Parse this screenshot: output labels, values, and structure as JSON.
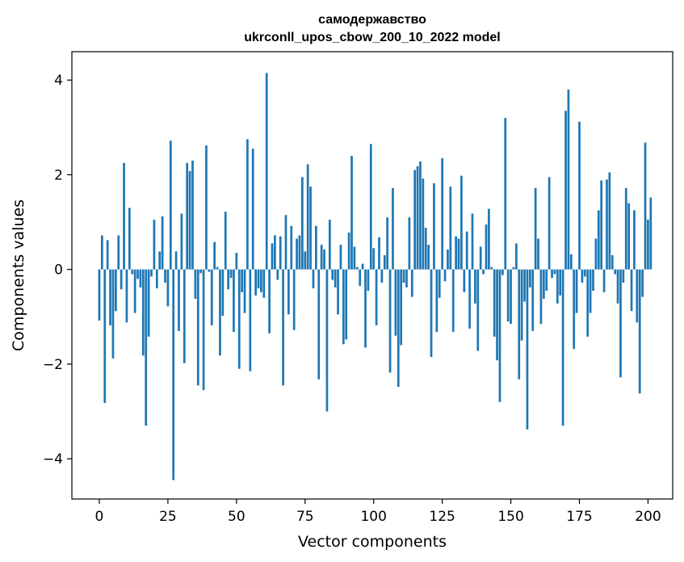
{
  "chart_data": {
    "type": "bar",
    "title": "самодержавство",
    "subtitle": "ukrconll_upos_cbow_200_10_2022 model",
    "xlabel": "Vector components",
    "ylabel": "Components values",
    "xlim": [
      -10,
      209
    ],
    "ylim": [
      -4.85,
      4.6
    ],
    "xticks": [
      0,
      25,
      50,
      75,
      100,
      125,
      150,
      175,
      200
    ],
    "yticks": [
      -4,
      -2,
      0,
      2,
      4
    ],
    "ytick_labels": [
      "−4",
      "−2",
      "0",
      "2",
      "4"
    ],
    "bar_color": "#1f77b4",
    "grid": false,
    "legend": "none",
    "values": [
      -1.08,
      0.72,
      -2.82,
      0.62,
      -1.18,
      -1.88,
      -0.88,
      0.72,
      -0.42,
      2.25,
      -1.12,
      1.3,
      -0.1,
      -0.92,
      -0.2,
      -0.38,
      -1.82,
      -3.3,
      -1.42,
      -0.15,
      1.05,
      -0.4,
      0.38,
      1.12,
      -0.28,
      -0.78,
      2.72,
      -4.45,
      0.38,
      -1.3,
      1.18,
      -1.98,
      2.25,
      2.08,
      2.3,
      -0.62,
      -2.45,
      -0.08,
      -2.55,
      2.62,
      -0.05,
      -1.18,
      0.58,
      0.05,
      -1.82,
      -0.98,
      1.22,
      -0.42,
      -0.18,
      -1.32,
      0.35,
      -2.1,
      -0.48,
      -0.92,
      2.75,
      -2.15,
      2.55,
      -0.55,
      -0.4,
      -0.48,
      -0.6,
      4.15,
      -1.35,
      0.55,
      0.72,
      -0.22,
      0.7,
      -2.45,
      1.15,
      -0.95,
      0.92,
      -1.28,
      0.65,
      0.72,
      1.95,
      0.38,
      2.22,
      1.75,
      -0.4,
      0.92,
      -2.32,
      0.52,
      0.42,
      -3.0,
      1.05,
      -0.22,
      -0.38,
      -0.95,
      0.52,
      -1.58,
      -1.48,
      0.78,
      2.4,
      0.48,
      0.05,
      -0.35,
      0.12,
      -1.65,
      -0.45,
      2.65,
      0.45,
      -1.18,
      0.68,
      -0.28,
      0.3,
      1.1,
      -2.18,
      1.72,
      -1.4,
      -2.48,
      -1.6,
      -0.28,
      -0.38,
      1.1,
      -0.58,
      2.1,
      2.18,
      2.28,
      1.92,
      0.88,
      0.52,
      -1.85,
      1.82,
      -1.32,
      -0.6,
      2.35,
      -0.25,
      0.42,
      1.75,
      -1.32,
      0.7,
      0.65,
      1.98,
      -0.48,
      0.8,
      -1.25,
      1.18,
      -0.72,
      -1.72,
      0.48,
      -0.1,
      0.95,
      1.28,
      0.05,
      -1.42,
      -1.92,
      -2.8,
      -0.12,
      3.2,
      -1.1,
      -1.15,
      0.05,
      0.55,
      -2.32,
      -1.5,
      -0.68,
      -3.38,
      -0.38,
      -1.3,
      1.72,
      0.65,
      -1.15,
      -0.62,
      -0.45,
      1.95,
      -0.18,
      -0.1,
      -0.72,
      -0.55,
      -3.3,
      3.35,
      3.8,
      0.32,
      -1.68,
      -0.92,
      3.12,
      -0.28,
      -0.15,
      -1.42,
      -0.92,
      -0.45,
      0.65,
      1.25,
      1.88,
      -0.48,
      1.9,
      2.05,
      0.3,
      -0.1,
      -0.72,
      -2.28,
      -0.28,
      1.72,
      1.4,
      -0.88,
      1.25,
      -1.12,
      -2.62,
      -0.58,
      2.68,
      1.05,
      1.52
    ]
  }
}
